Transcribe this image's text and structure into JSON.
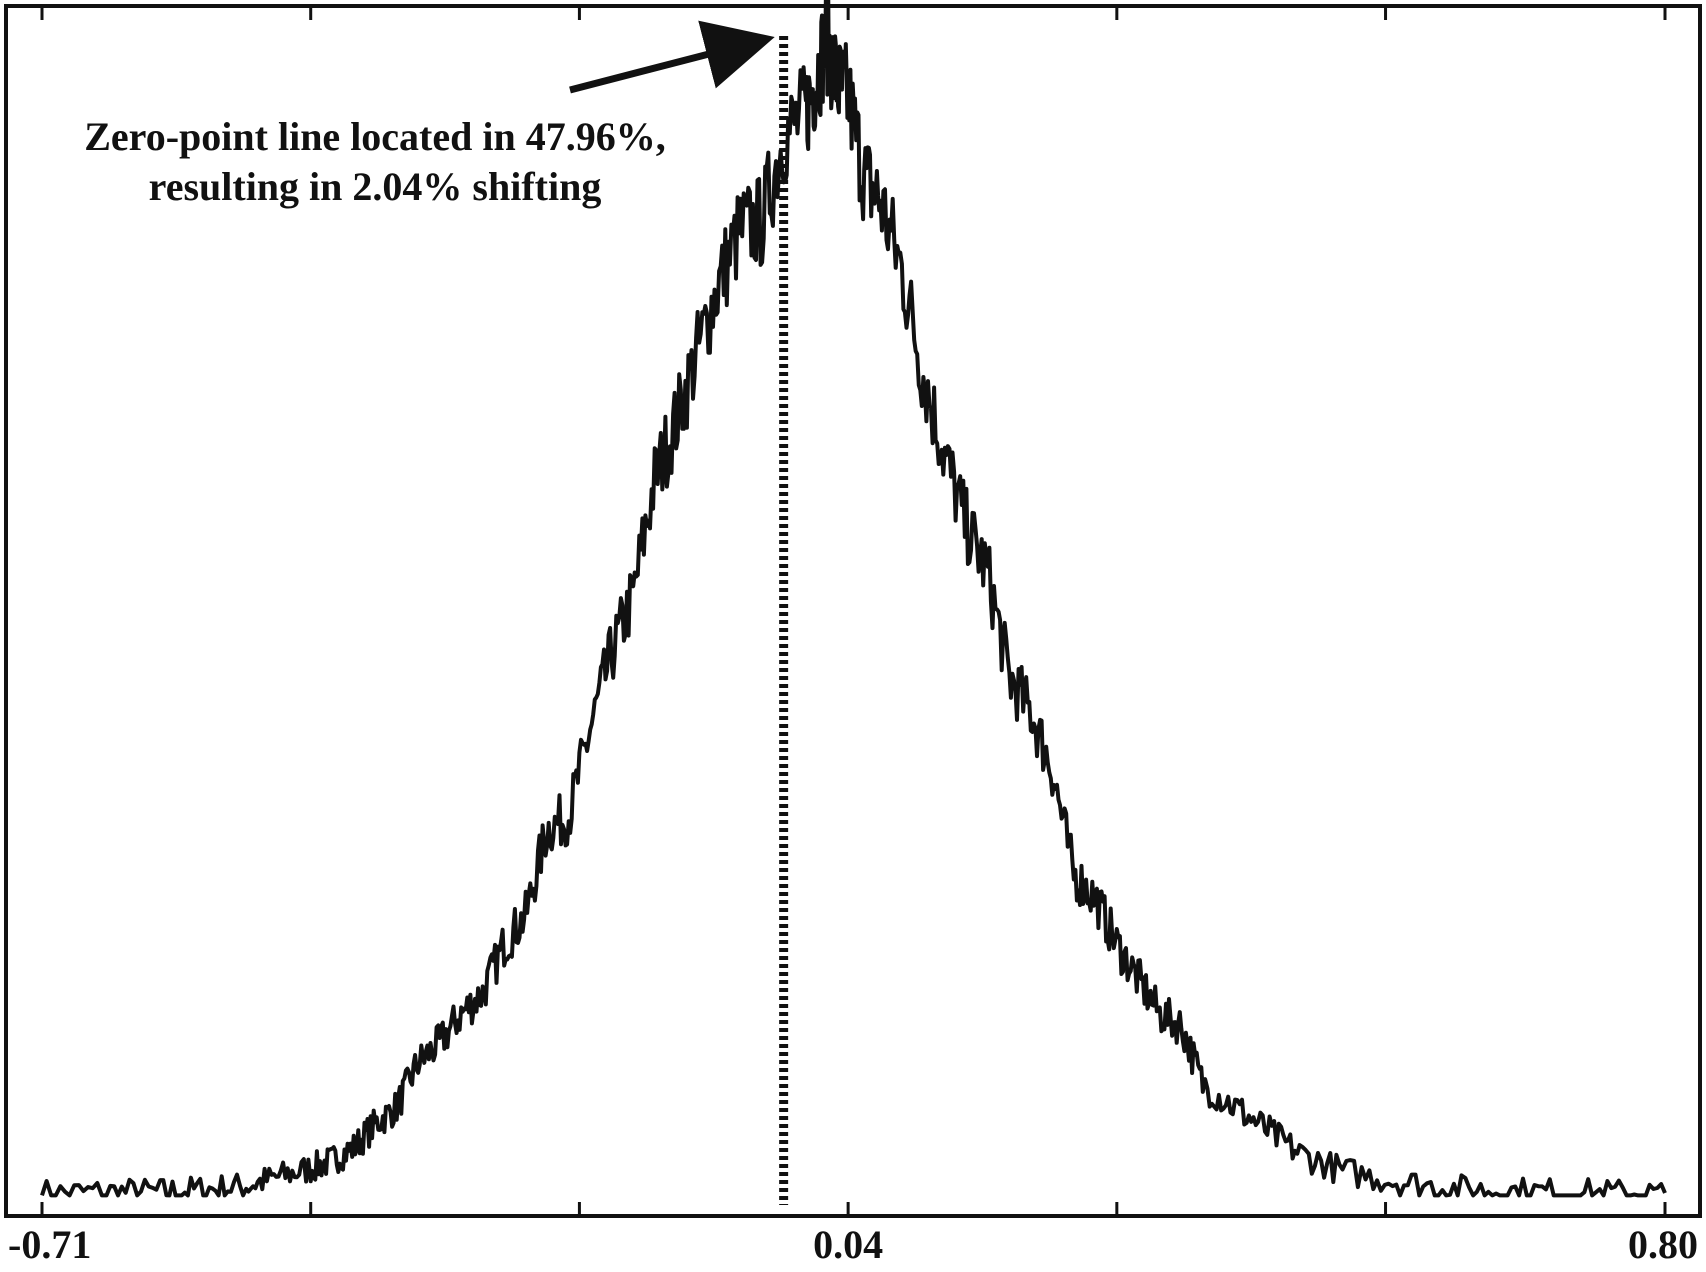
{
  "chart_data": {
    "type": "line",
    "title": "",
    "xlabel": "",
    "ylabel": "",
    "xlim": [
      -0.71,
      0.8
    ],
    "ylim": [
      0,
      1
    ],
    "grid": false,
    "legend": null,
    "x_tick_labels": [
      {
        "value": -0.71,
        "label": "-0.71"
      },
      {
        "value": 0.04,
        "label": "0.04"
      },
      {
        "value": 0.8,
        "label": "0.80"
      }
    ],
    "x_minor_ticks": [
      -0.46,
      -0.21,
      0.29,
      0.54
    ],
    "series": [
      {
        "x": [
          -0.71,
          -0.65,
          -0.6,
          -0.56,
          -0.52,
          -0.49,
          -0.46,
          -0.44,
          -0.42,
          -0.4,
          -0.38,
          -0.36,
          -0.34,
          -0.32,
          -0.3,
          -0.28,
          -0.26,
          -0.24,
          -0.22,
          -0.2,
          -0.18,
          -0.16,
          -0.14,
          -0.12,
          -0.1,
          -0.08,
          -0.06,
          -0.04,
          -0.02,
          0.0,
          0.01,
          0.02,
          0.03,
          0.04,
          0.055,
          0.07,
          0.09,
          0.11,
          0.13,
          0.15,
          0.17,
          0.19,
          0.21,
          0.23,
          0.25,
          0.27,
          0.29,
          0.31,
          0.33,
          0.35,
          0.37,
          0.4,
          0.43,
          0.46,
          0.5,
          0.55,
          0.6,
          0.65,
          0.7,
          0.75,
          0.8
        ],
        "y": [
          0.006,
          0.007,
          0.007,
          0.009,
          0.012,
          0.02,
          0.027,
          0.034,
          0.045,
          0.065,
          0.08,
          0.118,
          0.135,
          0.16,
          0.178,
          0.22,
          0.245,
          0.319,
          0.33,
          0.405,
          0.47,
          0.52,
          0.62,
          0.67,
          0.73,
          0.79,
          0.835,
          0.842,
          0.915,
          0.935,
          0.965,
          1.0,
          0.96,
          0.95,
          0.88,
          0.86,
          0.8,
          0.71,
          0.64,
          0.58,
          0.54,
          0.45,
          0.42,
          0.37,
          0.28,
          0.26,
          0.22,
          0.19,
          0.16,
          0.15,
          0.1,
          0.08,
          0.06,
          0.04,
          0.025,
          0.016,
          0.01,
          0.008,
          0.007,
          0.006,
          0.006
        ]
      }
    ],
    "reference_line": {
      "x": -0.02,
      "style": "dotted vertical"
    },
    "annotation": {
      "lines": [
        "Zero-point line located in 47.96%,",
        "resulting in 2.04% shifting"
      ],
      "arrow": true
    }
  }
}
